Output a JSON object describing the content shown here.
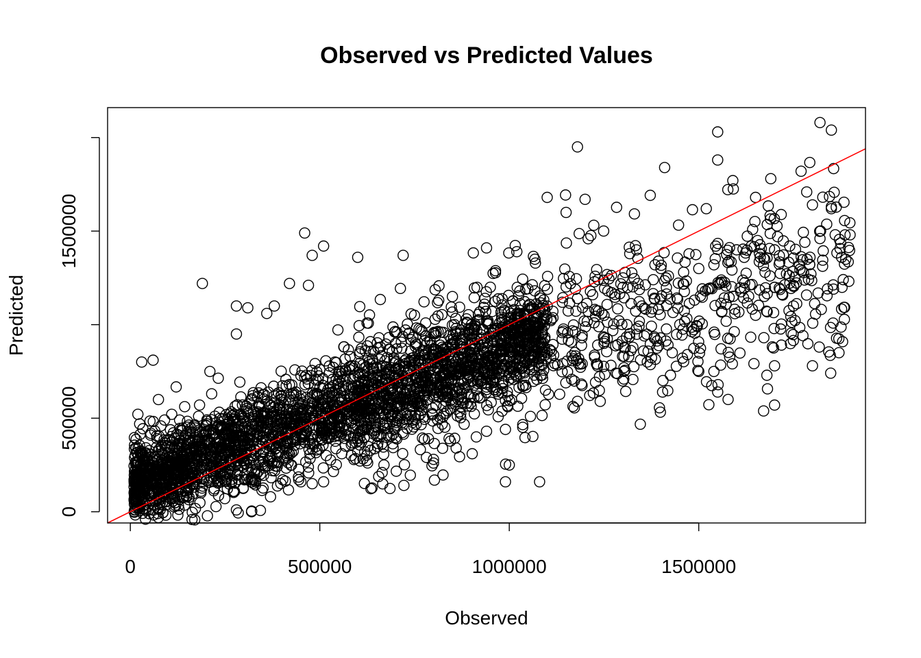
{
  "chart_data": {
    "type": "scatter",
    "title": "Observed vs Predicted Values",
    "xlabel": "Observed",
    "ylabel": "Predicted",
    "xlim": [
      -60000,
      1940000
    ],
    "ylim": [
      -60000,
      2160000
    ],
    "x_ticks": [
      0,
      500000,
      1000000,
      1500000
    ],
    "x_tick_labels": [
      "0",
      "500000",
      "1000000",
      "1500000"
    ],
    "y_ticks": [
      0,
      500000,
      1000000,
      1500000,
      2000000
    ],
    "y_tick_labels": [
      "0",
      "500000",
      "",
      "1500000",
      ""
    ],
    "grid": false,
    "legend": "none",
    "reference_line": {
      "type": "y = x",
      "intercept": 0,
      "slope": 1
    },
    "colors": {
      "points": "#000000",
      "reference_line": "#ff0000"
    },
    "marker": "open-circle",
    "series": [
      {
        "points": [
          [
            460000,
            1490000
          ],
          [
            190000,
            1220000
          ],
          [
            1180000,
            1950000
          ],
          [
            1550000,
            2030000
          ],
          [
            1820000,
            2080000
          ],
          [
            1850000,
            2040000
          ],
          [
            1410000,
            1840000
          ],
          [
            1550000,
            1880000
          ],
          [
            1100000,
            1680000
          ],
          [
            1690000,
            1780000
          ],
          [
            1770000,
            1820000
          ],
          [
            1590000,
            1770000
          ],
          [
            1650000,
            1680000
          ],
          [
            1850000,
            1630000
          ],
          [
            1850000,
            1620000
          ],
          [
            1520000,
            1620000
          ],
          [
            1800000,
            1640000
          ],
          [
            1200000,
            1670000
          ],
          [
            1150000,
            1600000
          ],
          [
            1020000,
            1390000
          ],
          [
            940000,
            1410000
          ],
          [
            720000,
            1370000
          ],
          [
            600000,
            1360000
          ],
          [
            510000,
            1420000
          ],
          [
            480000,
            1370000
          ],
          [
            420000,
            1220000
          ],
          [
            470000,
            1210000
          ],
          [
            380000,
            1100000
          ],
          [
            360000,
            1060000
          ],
          [
            280000,
            1100000
          ],
          [
            310000,
            1090000
          ],
          [
            280000,
            950000
          ],
          [
            210000,
            750000
          ],
          [
            60000,
            810000
          ],
          [
            30000,
            800000
          ],
          [
            1430000,
            850000
          ],
          [
            1230000,
            790000
          ],
          [
            1500000,
            750000
          ],
          [
            1540000,
            750000
          ],
          [
            1700000,
            780000
          ],
          [
            1800000,
            780000
          ],
          [
            1870000,
            850000
          ],
          [
            1240000,
            590000
          ],
          [
            1180000,
            590000
          ],
          [
            1550000,
            640000
          ],
          [
            1700000,
            570000
          ],
          [
            990000,
            440000
          ],
          [
            940000,
            430000
          ],
          [
            1000000,
            250000
          ],
          [
            990000,
            160000
          ],
          [
            1080000,
            160000
          ],
          [
            800000,
            280000
          ],
          [
            800000,
            260000
          ],
          [
            510000,
            160000
          ],
          [
            480000,
            150000
          ],
          [
            450000,
            160000
          ],
          [
            370000,
            80000
          ],
          [
            280000,
            10000
          ],
          [
            320000,
            0
          ],
          [
            40000,
            -40000
          ],
          [
            50000,
            -10000
          ],
          [
            600000,
            650000
          ],
          [
            900000,
            980000
          ],
          [
            1300000,
            1250000
          ],
          [
            1400000,
            1300000
          ],
          [
            1600000,
            1400000
          ],
          [
            1700000,
            1200000
          ],
          [
            1750000,
            1100000
          ],
          [
            1650000,
            1050000
          ],
          [
            1450000,
            1000000
          ],
          [
            1350000,
            1100000
          ],
          [
            1250000,
            900000
          ],
          [
            1100000,
            850000
          ],
          [
            1050000,
            1100000
          ],
          [
            950000,
            1200000
          ],
          [
            850000,
            1150000
          ],
          [
            750000,
            1050000
          ],
          [
            700000,
            800000
          ],
          [
            650000,
            700000
          ],
          [
            550000,
            600000
          ],
          [
            500000,
            550000
          ],
          [
            450000,
            500000
          ],
          [
            400000,
            450000
          ],
          [
            350000,
            400000
          ],
          [
            300000,
            350000
          ],
          [
            250000,
            300000
          ],
          [
            200000,
            250000
          ],
          [
            150000,
            200000
          ],
          [
            100000,
            180000
          ],
          [
            80000,
            150000
          ],
          [
            120000,
            250000
          ],
          [
            140000,
            300000
          ],
          [
            180000,
            350000
          ],
          [
            220000,
            420000
          ],
          [
            260000,
            480000
          ],
          [
            300000,
            520000
          ],
          [
            340000,
            560000
          ],
          [
            380000,
            620000
          ],
          [
            420000,
            680000
          ],
          [
            460000,
            720000
          ],
          [
            500000,
            760000
          ],
          [
            540000,
            800000
          ],
          [
            580000,
            830000
          ],
          [
            620000,
            860000
          ],
          [
            660000,
            880000
          ],
          [
            700000,
            900000
          ],
          [
            740000,
            920000
          ],
          [
            780000,
            940000
          ],
          [
            820000,
            960000
          ],
          [
            860000,
            980000
          ],
          [
            900000,
            1000000
          ],
          [
            940000,
            1020000
          ],
          [
            980000,
            1040000
          ],
          [
            1020000,
            1060000
          ],
          [
            1060000,
            1080000
          ],
          [
            1100000,
            1100000
          ],
          [
            1140000,
            1120000
          ],
          [
            1180000,
            1140000
          ],
          [
            1220000,
            1160000
          ],
          [
            1260000,
            1180000
          ],
          [
            1300000,
            1200000
          ],
          [
            1340000,
            1220000
          ],
          [
            1380000,
            1240000
          ],
          [
            1420000,
            1260000
          ],
          [
            1460000,
            1280000
          ],
          [
            1500000,
            1300000
          ],
          [
            1540000,
            1320000
          ],
          [
            1580000,
            1340000
          ],
          [
            1620000,
            1360000
          ],
          [
            1660000,
            1380000
          ],
          [
            1700000,
            1400000
          ],
          [
            1740000,
            1420000
          ],
          [
            1780000,
            1440000
          ],
          [
            1820000,
            1460000
          ],
          [
            1860000,
            1480000
          ]
        ],
        "dense_clouds": [
          {
            "x_range": [
              10000,
              1100000
            ],
            "band": 120000,
            "count": 2600
          },
          {
            "x_range": [
              600000,
              1900000
            ],
            "band": 230000,
            "count": 950
          }
        ]
      }
    ]
  }
}
